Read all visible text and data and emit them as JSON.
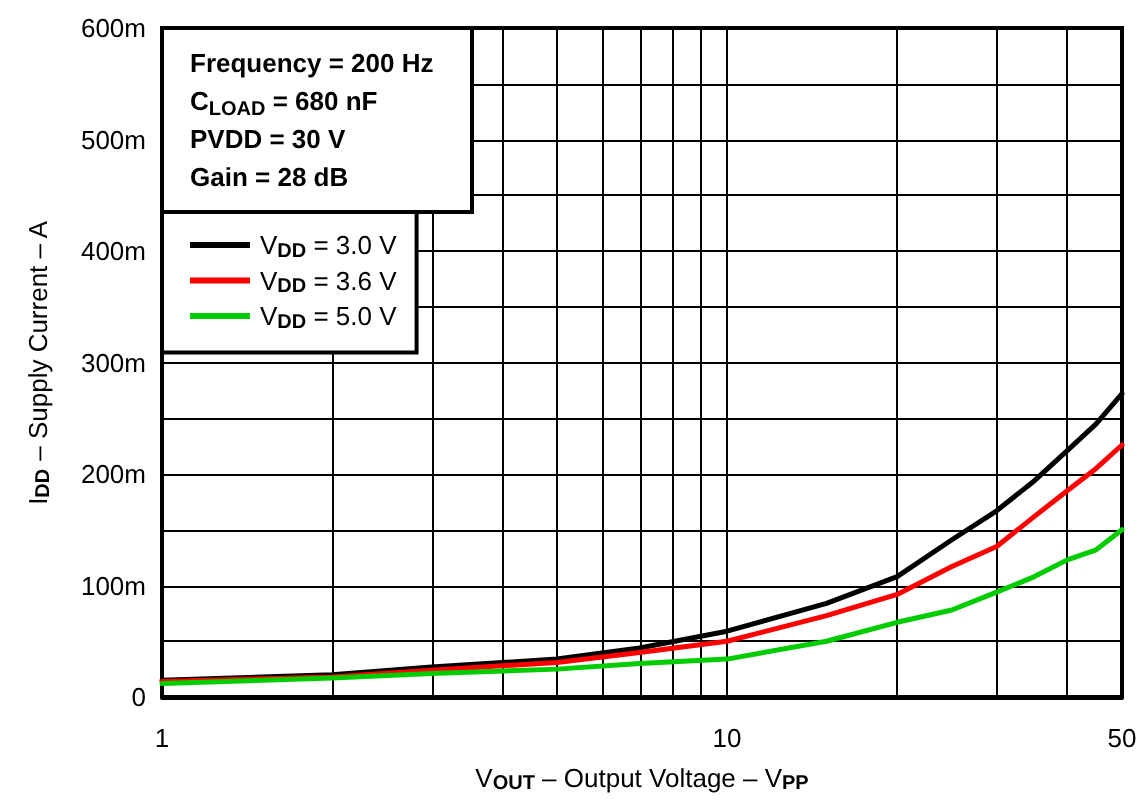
{
  "chart_data": {
    "type": "line",
    "xlabel": "V$_{OUT}$ – Output Voltage – V$_{PP}$",
    "ylabel": "I$_{DD}$ – Supply Current – A",
    "annotations": [
      "Frequency = 200 Hz",
      "C$_{LOAD}$ = 680 nF",
      "PVDD = 30 V",
      "Gain = 28 dB"
    ],
    "x": [
      1,
      2,
      3,
      5,
      7,
      10,
      15,
      20,
      25,
      30,
      35,
      40,
      45,
      50
    ],
    "series": [
      {
        "name": "V$_{DD}$ = 3.0 V",
        "color": "#000000",
        "values": [
          15,
          20,
          27,
          34,
          44,
          59,
          84,
          108,
          141,
          167,
          194,
          221,
          245,
          272
        ]
      },
      {
        "name": "V$_{DD}$ = 3.6 V",
        "color": "#ff0000",
        "values": [
          14,
          18,
          24,
          31,
          40,
          50,
          73,
          92,
          117,
          135,
          162,
          185,
          205,
          226
        ]
      },
      {
        "name": "V$_{DD}$ = 5.0 V",
        "color": "#00cc00",
        "values": [
          12,
          17,
          21,
          25,
          30,
          34,
          50,
          67,
          78,
          94,
          108,
          123,
          132,
          150
        ]
      }
    ],
    "log": "x",
    "xlim": [
      1,
      50
    ],
    "xticks": [
      1,
      {
        "value": 2,
        "label": null
      },
      {
        "value": 3,
        "label": null
      },
      {
        "value": 4,
        "label": null
      },
      {
        "value": 5,
        "label": null
      },
      {
        "value": 6,
        "label": null
      },
      {
        "value": 7,
        "label": null
      },
      {
        "value": 8,
        "label": null
      },
      {
        "value": 9,
        "label": null
      },
      10,
      {
        "value": 20,
        "label": null
      },
      {
        "value": 30,
        "label": null
      },
      {
        "value": 40,
        "label": null
      },
      50
    ],
    "ylim": [
      0,
      600
    ],
    "yticks": [
      0,
      {
        "value": 50,
        "label": null
      },
      {
        "value": 100,
        "label": "100m"
      },
      {
        "value": 150,
        "label": null
      },
      {
        "value": 200,
        "label": "200m"
      },
      {
        "value": 250,
        "label": null
      },
      {
        "value": 300,
        "label": "300m"
      },
      {
        "value": 350,
        "label": null
      },
      {
        "value": 400,
        "label": "400m"
      },
      {
        "value": 450,
        "label": null
      },
      {
        "value": 500,
        "label": "500m"
      },
      {
        "value": 550,
        "label": null
      },
      {
        "value": 600,
        "label": "600m"
      }
    ],
    "grid": true,
    "legend": "top left",
    "marker": "none",
    "line_style": "solid"
  }
}
